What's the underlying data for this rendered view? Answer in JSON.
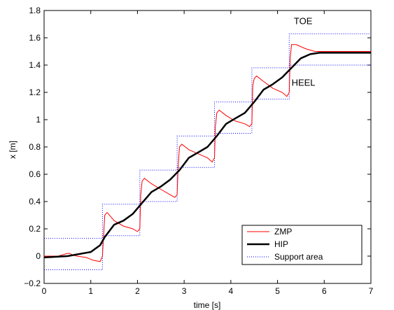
{
  "chart_data": {
    "type": "line",
    "title": "",
    "xlabel": "time [s]",
    "ylabel": "x [m]",
    "xlim": [
      0,
      7
    ],
    "ylim": [
      -0.2,
      1.8
    ],
    "xticks": [
      "0",
      "1",
      "2",
      "3",
      "4",
      "5",
      "6",
      "7"
    ],
    "yticks": [
      "−0.2",
      "0",
      "0.2",
      "0.4",
      "0.6",
      "0.8",
      "1",
      "1.2",
      "1.4",
      "1.6",
      "1.8"
    ],
    "grid": false,
    "legend_position": "bottom-right",
    "annotations": [
      {
        "text": "TOE",
        "x": 5.35,
        "y": 1.7
      },
      {
        "text": "HEEL",
        "x": 5.3,
        "y": 1.25
      }
    ],
    "series": [
      {
        "name": "ZMP",
        "color": "#ff0000",
        "style": "solid",
        "x": [
          0,
          0.3,
          0.5,
          0.55,
          0.6,
          0.7,
          0.9,
          1.05,
          1.2,
          1.25,
          1.27,
          1.3,
          1.35,
          1.5,
          1.7,
          1.9,
          2.0,
          2.05,
          2.07,
          2.1,
          2.15,
          2.3,
          2.5,
          2.7,
          2.8,
          2.85,
          2.87,
          2.9,
          2.95,
          3.1,
          3.3,
          3.5,
          3.6,
          3.65,
          3.67,
          3.7,
          3.75,
          3.9,
          4.1,
          4.3,
          4.4,
          4.45,
          4.47,
          4.5,
          4.55,
          4.7,
          4.9,
          5.1,
          5.2,
          5.25,
          5.27,
          5.3,
          5.4,
          5.6,
          5.8,
          6.0,
          6.5,
          7.0
        ],
        "y": [
          0,
          0.0,
          0.02,
          0.02,
          0.01,
          0.0,
          -0.01,
          -0.03,
          -0.04,
          0.0,
          0.12,
          0.3,
          0.32,
          0.26,
          0.22,
          0.2,
          0.18,
          0.2,
          0.45,
          0.55,
          0.57,
          0.53,
          0.49,
          0.45,
          0.43,
          0.45,
          0.65,
          0.8,
          0.82,
          0.78,
          0.75,
          0.72,
          0.69,
          0.72,
          0.95,
          1.05,
          1.07,
          1.03,
          0.99,
          0.97,
          0.95,
          0.97,
          1.25,
          1.3,
          1.32,
          1.28,
          1.23,
          1.2,
          1.17,
          1.2,
          1.45,
          1.55,
          1.55,
          1.52,
          1.5,
          1.5,
          1.5,
          1.5
        ]
      },
      {
        "name": "HIP",
        "color": "#000000",
        "style": "solid",
        "x": [
          0,
          0.5,
          1.0,
          1.2,
          1.3,
          1.5,
          1.7,
          1.9,
          2.1,
          2.3,
          2.5,
          2.7,
          2.9,
          3.1,
          3.3,
          3.5,
          3.7,
          3.9,
          4.1,
          4.3,
          4.5,
          4.7,
          4.9,
          5.1,
          5.3,
          5.5,
          5.7,
          5.9,
          6.3,
          7.0
        ],
        "y": [
          -0.01,
          0.0,
          0.03,
          0.08,
          0.14,
          0.23,
          0.26,
          0.31,
          0.39,
          0.47,
          0.51,
          0.56,
          0.63,
          0.72,
          0.76,
          0.8,
          0.88,
          0.97,
          1.01,
          1.05,
          1.13,
          1.22,
          1.26,
          1.31,
          1.38,
          1.45,
          1.48,
          1.49,
          1.49,
          1.49
        ]
      },
      {
        "name": "Support area",
        "color": "#0000ff",
        "style": "dotted",
        "x": [
          0,
          1.25,
          1.25,
          2.05,
          2.05,
          2.85,
          2.85,
          3.65,
          3.65,
          4.45,
          4.45,
          5.25,
          5.25,
          7.0
        ],
        "y_upper": [
          0.13,
          0.13,
          0.38,
          0.38,
          0.63,
          0.63,
          0.88,
          0.88,
          1.13,
          1.13,
          1.38,
          1.38,
          1.63,
          1.63
        ],
        "y_lower": [
          -0.1,
          -0.1,
          0.15,
          0.15,
          0.4,
          0.4,
          0.65,
          0.65,
          0.9,
          0.9,
          1.15,
          1.15,
          1.4,
          1.4
        ]
      }
    ]
  }
}
